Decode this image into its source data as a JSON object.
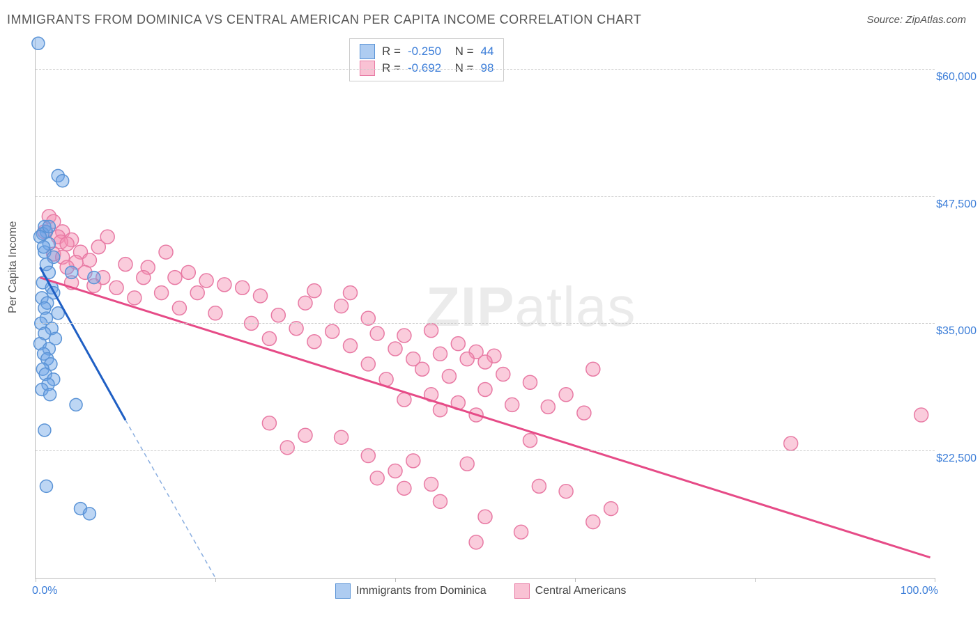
{
  "title": "IMMIGRANTS FROM DOMINICA VS CENTRAL AMERICAN PER CAPITA INCOME CORRELATION CHART",
  "source": "Source: ZipAtlas.com",
  "ylabel": "Per Capita Income",
  "watermark_bold": "ZIP",
  "watermark_rest": "atlas",
  "chart": {
    "type": "scatter",
    "background_color": "#ffffff",
    "grid_color": "#cccccc",
    "grid_dash": "4,4",
    "axis_color": "#bbbbbb",
    "tick_label_color": "#3b7dd8",
    "tick_fontsize": 16,
    "xlim": [
      0,
      100
    ],
    "ylim": [
      10000,
      63000
    ],
    "ytick_values": [
      22500,
      35000,
      47500,
      60000
    ],
    "ytick_labels": [
      "$22,500",
      "$35,000",
      "$47,500",
      "$60,000"
    ],
    "xtick_values": [
      0,
      20,
      40,
      60,
      80,
      100
    ],
    "x_axis_min_label": "0.0%",
    "x_axis_max_label": "100.0%",
    "series": [
      {
        "name": "Immigrants from Dominica",
        "color_fill": "rgba(108,163,230,0.45)",
        "color_stroke": "#5a93d6",
        "trend_color": "#1f5fc4",
        "trend_width": 3,
        "trend_dash_ext_color": "#8aaee0",
        "marker_radius": 9,
        "R": "-0.250",
        "N": "44",
        "trend": {
          "x1": 0.5,
          "y1": 40500,
          "x2": 10,
          "y2": 25500,
          "x2_ext": 20,
          "y2_ext": 10000
        },
        "points": [
          [
            0.3,
            62500
          ],
          [
            2.5,
            49500
          ],
          [
            3.0,
            49000
          ],
          [
            1.0,
            44500
          ],
          [
            1.2,
            44000
          ],
          [
            0.8,
            43800
          ],
          [
            0.5,
            43500
          ],
          [
            1.5,
            42800
          ],
          [
            1.0,
            42000
          ],
          [
            2.0,
            41500
          ],
          [
            1.2,
            40800
          ],
          [
            1.5,
            40000
          ],
          [
            4.0,
            40000
          ],
          [
            6.5,
            39500
          ],
          [
            0.8,
            39000
          ],
          [
            1.8,
            38500
          ],
          [
            2.0,
            38000
          ],
          [
            0.7,
            37500
          ],
          [
            1.3,
            37000
          ],
          [
            1.0,
            36500
          ],
          [
            2.5,
            36000
          ],
          [
            1.2,
            35500
          ],
          [
            0.6,
            35000
          ],
          [
            1.8,
            34500
          ],
          [
            1.0,
            34000
          ],
          [
            2.2,
            33500
          ],
          [
            0.5,
            33000
          ],
          [
            1.5,
            32500
          ],
          [
            0.9,
            32000
          ],
          [
            1.3,
            31500
          ],
          [
            1.7,
            31000
          ],
          [
            0.8,
            30500
          ],
          [
            1.1,
            30000
          ],
          [
            2.0,
            29500
          ],
          [
            1.4,
            29000
          ],
          [
            0.7,
            28500
          ],
          [
            1.6,
            28000
          ],
          [
            4.5,
            27000
          ],
          [
            1.0,
            24500
          ],
          [
            1.2,
            19000
          ],
          [
            5.0,
            16800
          ],
          [
            6.0,
            16300
          ],
          [
            1.5,
            44500
          ],
          [
            0.9,
            42500
          ]
        ]
      },
      {
        "name": "Central Americans",
        "color_fill": "rgba(244,143,177,0.45)",
        "color_stroke": "#e87aa4",
        "trend_color": "#e64b87",
        "trend_width": 3,
        "marker_radius": 10,
        "R": "-0.692",
        "N": "98",
        "trend": {
          "x1": 0.5,
          "y1": 39500,
          "x2": 99.5,
          "y2": 12000
        },
        "points": [
          [
            1.5,
            45500
          ],
          [
            2.0,
            45000
          ],
          [
            1.0,
            44000
          ],
          [
            3.0,
            44000
          ],
          [
            2.5,
            43500
          ],
          [
            8.0,
            43500
          ],
          [
            4.0,
            43200
          ],
          [
            2.8,
            43000
          ],
          [
            3.5,
            42800
          ],
          [
            7.0,
            42500
          ],
          [
            5.0,
            42000
          ],
          [
            14.5,
            42000
          ],
          [
            2.0,
            41800
          ],
          [
            3.0,
            41500
          ],
          [
            6.0,
            41200
          ],
          [
            4.5,
            41000
          ],
          [
            10.0,
            40800
          ],
          [
            3.5,
            40500
          ],
          [
            12.5,
            40500
          ],
          [
            5.5,
            40000
          ],
          [
            17.0,
            40000
          ],
          [
            7.5,
            39500
          ],
          [
            12.0,
            39500
          ],
          [
            15.5,
            39500
          ],
          [
            19.0,
            39200
          ],
          [
            4.0,
            39000
          ],
          [
            21.0,
            38800
          ],
          [
            6.5,
            38700
          ],
          [
            9.0,
            38500
          ],
          [
            23.0,
            38500
          ],
          [
            14.0,
            38000
          ],
          [
            18.0,
            38000
          ],
          [
            25.0,
            37700
          ],
          [
            11.0,
            37500
          ],
          [
            31.0,
            38200
          ],
          [
            35.0,
            38000
          ],
          [
            30.0,
            37000
          ],
          [
            34.0,
            36700
          ],
          [
            16.0,
            36500
          ],
          [
            20.0,
            36000
          ],
          [
            27.0,
            35800
          ],
          [
            37.0,
            35500
          ],
          [
            24.0,
            35000
          ],
          [
            29.0,
            34500
          ],
          [
            33.0,
            34200
          ],
          [
            38.0,
            34000
          ],
          [
            44.0,
            34300
          ],
          [
            41.0,
            33800
          ],
          [
            26.0,
            33500
          ],
          [
            31.0,
            33200
          ],
          [
            47.0,
            33000
          ],
          [
            35.0,
            32800
          ],
          [
            40.0,
            32500
          ],
          [
            49.0,
            32200
          ],
          [
            45.0,
            32000
          ],
          [
            51.0,
            31800
          ],
          [
            42.0,
            31500
          ],
          [
            48.0,
            31500
          ],
          [
            50.0,
            31200
          ],
          [
            37.0,
            31000
          ],
          [
            43.0,
            30500
          ],
          [
            52.0,
            30000
          ],
          [
            46.0,
            29800
          ],
          [
            39.0,
            29500
          ],
          [
            55.0,
            29200
          ],
          [
            62.0,
            30500
          ],
          [
            50.0,
            28500
          ],
          [
            44.0,
            28000
          ],
          [
            59.0,
            28000
          ],
          [
            41.0,
            27500
          ],
          [
            47.0,
            27200
          ],
          [
            53.0,
            27000
          ],
          [
            57.0,
            26800
          ],
          [
            45.0,
            26500
          ],
          [
            61.0,
            26200
          ],
          [
            49.0,
            26000
          ],
          [
            98.5,
            26000
          ],
          [
            26.0,
            25200
          ],
          [
            30.0,
            24000
          ],
          [
            34.0,
            23800
          ],
          [
            55.0,
            23500
          ],
          [
            84.0,
            23200
          ],
          [
            28.0,
            22800
          ],
          [
            37.0,
            22000
          ],
          [
            42.0,
            21500
          ],
          [
            48.0,
            21200
          ],
          [
            40.0,
            20500
          ],
          [
            38.0,
            19800
          ],
          [
            44.0,
            19200
          ],
          [
            41.0,
            18800
          ],
          [
            56.0,
            19000
          ],
          [
            59.0,
            18500
          ],
          [
            45.0,
            17500
          ],
          [
            64.0,
            16800
          ],
          [
            50.0,
            16000
          ],
          [
            62.0,
            15500
          ],
          [
            54.0,
            14500
          ],
          [
            49.0,
            13500
          ]
        ]
      }
    ],
    "legend_swatch": {
      "blue_fill": "rgba(108,163,230,0.55)",
      "blue_border": "#5a93d6",
      "pink_fill": "rgba(244,143,177,0.55)",
      "pink_border": "#e87aa4"
    }
  }
}
